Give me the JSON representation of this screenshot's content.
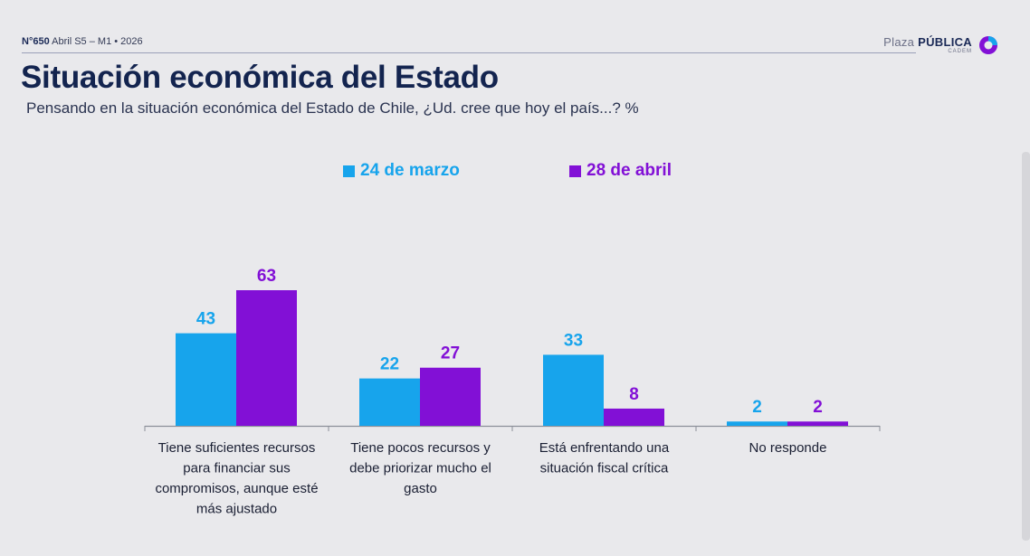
{
  "header": {
    "issue_number": "N°650",
    "issue_detail": "Abril S5 – M1 • 2026",
    "brand_light": "Plaza",
    "brand_bold": "PÚBLICA",
    "brand_sub": "CADEM"
  },
  "colors": {
    "series1": "#17a4ec",
    "series2": "#8210d6",
    "title": "#13244f"
  },
  "chart_data": {
    "type": "bar",
    "title": "Situación económica del Estado",
    "subtitle": "Pensando en la situación económica del Estado de Chile, ¿Ud. cree que hoy el país...? %",
    "categories": [
      [
        "Tiene suficientes recursos",
        "para financiar sus",
        "compromisos, aunque esté",
        "más ajustado"
      ],
      [
        "Tiene pocos recursos y",
        "debe priorizar mucho el",
        "gasto"
      ],
      [
        "Está enfrentando una",
        "situación fiscal crítica"
      ],
      [
        "No responde"
      ]
    ],
    "series": [
      {
        "name": "24 de marzo",
        "values": [
          43,
          22,
          33,
          2
        ]
      },
      {
        "name": "28 de abril",
        "values": [
          63,
          27,
          8,
          2
        ]
      }
    ],
    "ylim": [
      0,
      63
    ],
    "grid": false,
    "legend": "top-center"
  }
}
